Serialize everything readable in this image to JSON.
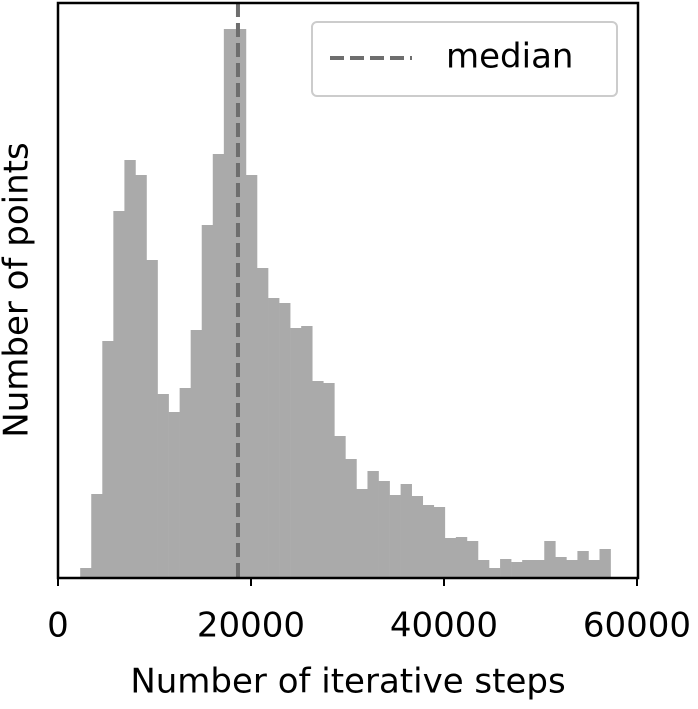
{
  "chart_data": {
    "type": "histogram",
    "xlabel": "Number of iterative steps",
    "ylabel": "Number of points",
    "color": "#aaaaaa",
    "bins": [
      2300,
      3445,
      4590,
      5735,
      6880,
      8025,
      9170,
      10315,
      11460,
      12605,
      13750,
      14895,
      16040,
      17185,
      18330,
      19475,
      20620,
      21765,
      22910,
      24055,
      25200,
      26345,
      27490,
      28635,
      29780,
      30925,
      32070,
      33215,
      34360,
      35505,
      36650,
      37795,
      38940,
      40085,
      41230,
      42375,
      43520,
      44665,
      45810,
      46955,
      48100,
      49245,
      50390,
      51535,
      52680,
      53825,
      54970,
      56115,
      57260
    ],
    "counts": [
      10,
      84,
      237,
      367,
      418,
      403,
      318,
      184,
      166,
      190,
      248,
      353,
      424,
      549,
      549,
      403,
      310,
      280,
      275,
      250,
      252,
      197,
      195,
      142,
      119,
      89,
      107,
      97,
      83,
      94,
      82,
      73,
      71,
      40,
      41,
      37,
      18,
      10,
      19,
      16,
      18,
      18,
      37,
      21,
      18,
      27,
      18,
      29
    ],
    "median": {
      "value": 18650,
      "label": "median",
      "color": "#6e6e6e"
    },
    "xlim": [
      0,
      60000
    ],
    "ylim": [
      0,
      575
    ],
    "xticks": [
      0,
      20000,
      40000,
      60000
    ],
    "legend": "upper right"
  }
}
